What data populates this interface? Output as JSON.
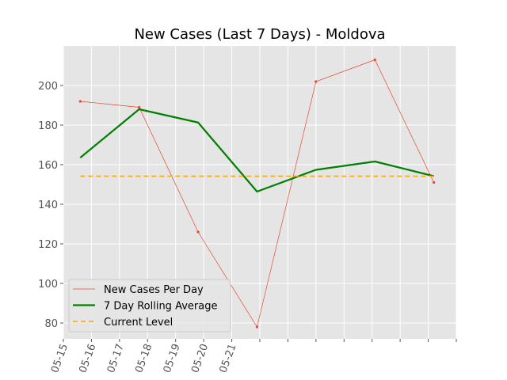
{
  "chart_data": {
    "type": "line",
    "title": "New Cases (Last 7 Days) - Moldova",
    "xlabel": "",
    "ylabel": "",
    "x_tick_labels": [
      "05-15",
      "05-16",
      "05-17",
      "05-18",
      "05-19",
      "05-20",
      "05-21"
    ],
    "x_range": [
      0,
      14
    ],
    "ylim": [
      72,
      220
    ],
    "y_ticks": [
      80,
      100,
      120,
      140,
      160,
      180,
      200
    ],
    "grid": true,
    "legend_position": "lower-left",
    "series": [
      {
        "name": "New Cases Per Day",
        "color": "#E24A33",
        "style": "thin-line-with-markers",
        "x": [
          0.6,
          2.7,
          4.8,
          6.9,
          9.0,
          11.1,
          13.2
        ],
        "values": [
          192,
          189,
          126,
          78,
          202,
          213,
          151
        ]
      },
      {
        "name": "7 Day Rolling Average",
        "color": "#008000",
        "style": "thick-line",
        "x": [
          0.6,
          2.7,
          4.8,
          6.9,
          9.0,
          11.1,
          13.2
        ],
        "values": [
          163.5,
          188,
          181.3,
          146.4,
          157.4,
          161.6,
          154.2
        ]
      },
      {
        "name": "Current Level",
        "color": "#FFA500",
        "style": "dashed",
        "x": [
          0.6,
          13.2
        ],
        "values": [
          154.2,
          154.2
        ]
      }
    ]
  }
}
